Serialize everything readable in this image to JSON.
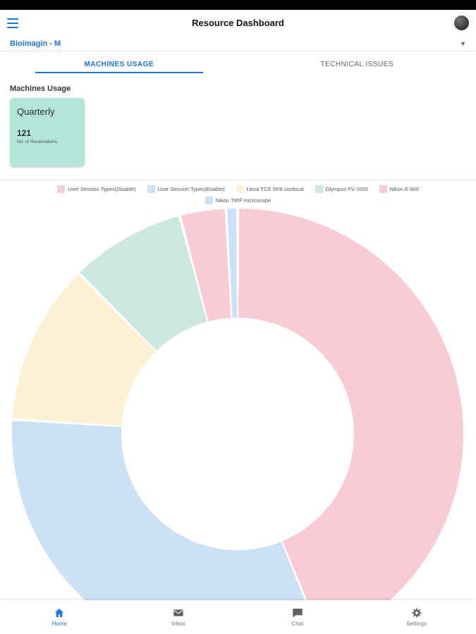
{
  "header": {
    "title": "Resource Dashboard"
  },
  "facility_selector": {
    "value": "Bioimagin - M"
  },
  "tabs": [
    {
      "label": "MACHINES USAGE",
      "active": true
    },
    {
      "label": "TECHNICAL ISSUES",
      "active": false
    }
  ],
  "section": {
    "title": "Machines Usage"
  },
  "summary_card": {
    "period": "Quarterly",
    "value": "121",
    "caption": "No. of Reservations"
  },
  "chart_data": {
    "type": "pie",
    "donut": true,
    "title": "Machines Usage",
    "legend_position": "top",
    "start_angle_deg": 0,
    "total": 121,
    "series": [
      {
        "name": "User Session Types(Disable)",
        "value": 53,
        "color": "#f8cbd7"
      },
      {
        "name": "User Session Types(Enable)",
        "value": 39,
        "color": "#cbe2f6"
      },
      {
        "name": "Leica TCS SP8 confocal",
        "value": 14,
        "color": "#fcf1d2"
      },
      {
        "name": "Olympus FV-1000",
        "value": 10,
        "color": "#cbe9e1"
      },
      {
        "name": "Nikon E-800",
        "value": 4,
        "color": "#f8cbd7"
      },
      {
        "name": "Nikon TIRF microscope",
        "value": 1,
        "color": "#cbe2f6"
      }
    ]
  },
  "bottom_nav": [
    {
      "label": "Home",
      "icon": "home-icon",
      "active": true
    },
    {
      "label": "Inbox",
      "icon": "inbox-icon",
      "active": false
    },
    {
      "label": "Chat",
      "icon": "chat-icon",
      "active": false
    },
    {
      "label": "Settings",
      "icon": "settings-icon",
      "active": false
    }
  ],
  "colors": {
    "accent_blue": "#1a73e8",
    "card_teal": "#b5e4db",
    "status_bar": "#000000"
  }
}
